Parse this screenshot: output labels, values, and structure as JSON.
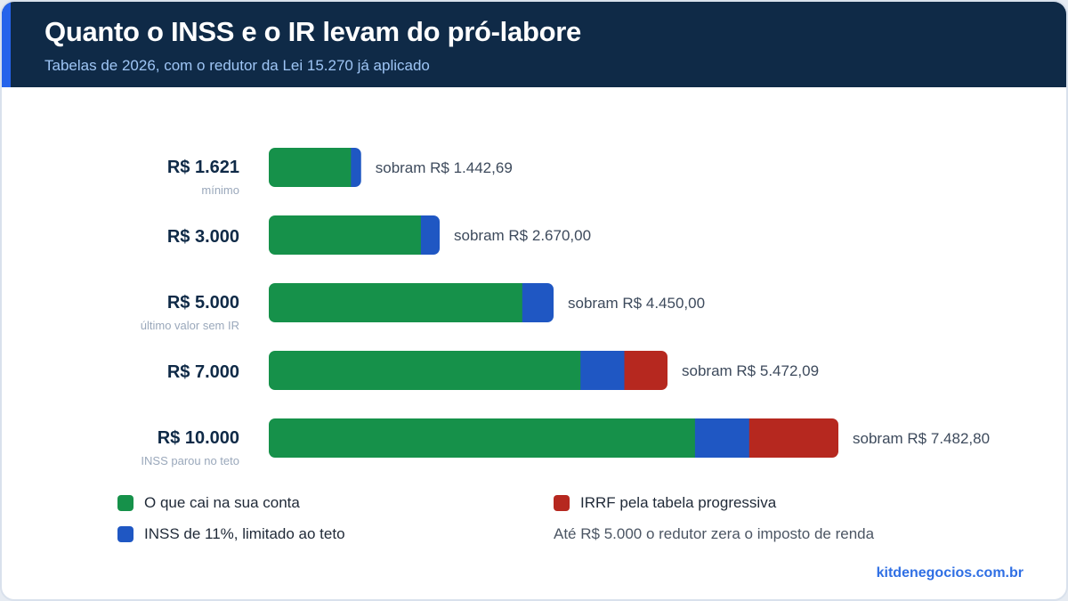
{
  "header": {
    "title": "Quanto o INSS e o IR levam do pró-labore",
    "subtitle": "Tabelas de 2026, com o redutor da Lei 15.270 já aplicado"
  },
  "chart_data": {
    "type": "bar",
    "orientation": "horizontal",
    "stacked": true,
    "title": "Quanto o INSS e o IR levam do pró-labore",
    "subtitle": "Tabelas de 2026, com o redutor da Lei 15.270 já aplicado",
    "categories": [
      "R$ 1.621",
      "R$ 3.000",
      "R$ 5.000",
      "R$ 7.000",
      "R$ 10.000"
    ],
    "category_notes": [
      "mínimo",
      "",
      "último valor sem IR",
      "",
      "INSS parou no teto"
    ],
    "gross": [
      1621,
      3000,
      5000,
      7000,
      10000
    ],
    "series": [
      {
        "name": "O que cai na sua conta",
        "color": "#16914a",
        "values": [
          1442.69,
          2670.0,
          4450.0,
          5472.09,
          7482.8
        ]
      },
      {
        "name": "INSS de 11%, limitado ao teto",
        "color": "#1f57c3",
        "values": [
          178.31,
          330.0,
          550.0,
          770.0,
          951.63
        ]
      },
      {
        "name": "IRRF pela tabela progressiva",
        "color": "#b6281f",
        "values": [
          0,
          0,
          0,
          757.91,
          1565.57
        ]
      }
    ],
    "data_labels": [
      "sobram R$ 1.442,69",
      "sobram R$ 2.670,00",
      "sobram R$ 4.450,00",
      "sobram R$ 5.472,09",
      "sobram R$ 7.482,80"
    ],
    "xlim": [
      0,
      10000
    ],
    "grid": false,
    "legend_position": "bottom"
  },
  "legend": {
    "net_label": "O que cai na sua conta",
    "inss_label": "INSS de 11%, limitado ao teto",
    "irrf_label": "IRRF pela tabela progressiva",
    "note": "Até R$ 5.000 o redutor zera o imposto de renda",
    "colors": {
      "net": "#16914a",
      "inss": "#1f57c3",
      "irrf": "#b6281f"
    }
  },
  "footer": {
    "brand": "kitdenegocios.com.br"
  }
}
